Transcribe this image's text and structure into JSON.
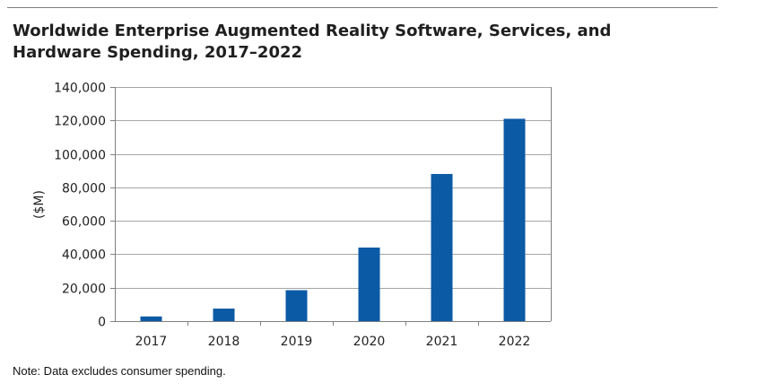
{
  "chart_data": {
    "type": "bar",
    "title": "Worldwide Enterprise Augmented Reality Software, Services, and Hardware Spending, 2017–2022",
    "xlabel": "",
    "ylabel": "($M)",
    "categories": [
      "2017",
      "2018",
      "2019",
      "2020",
      "2021",
      "2022"
    ],
    "values": [
      2800,
      7500,
      18500,
      44000,
      88000,
      121000
    ],
    "ylim": [
      0,
      140000
    ],
    "yticks": [
      0,
      20000,
      40000,
      60000,
      80000,
      100000,
      120000,
      140000
    ],
    "ytick_labels": [
      "0",
      "20,000",
      "40,000",
      "60,000",
      "80,000",
      "100,000",
      "120,000",
      "140,000"
    ],
    "grid": true,
    "legend": "none",
    "bar_color": "#0b5aa5"
  },
  "note": "Note: Data excludes consumer spending."
}
